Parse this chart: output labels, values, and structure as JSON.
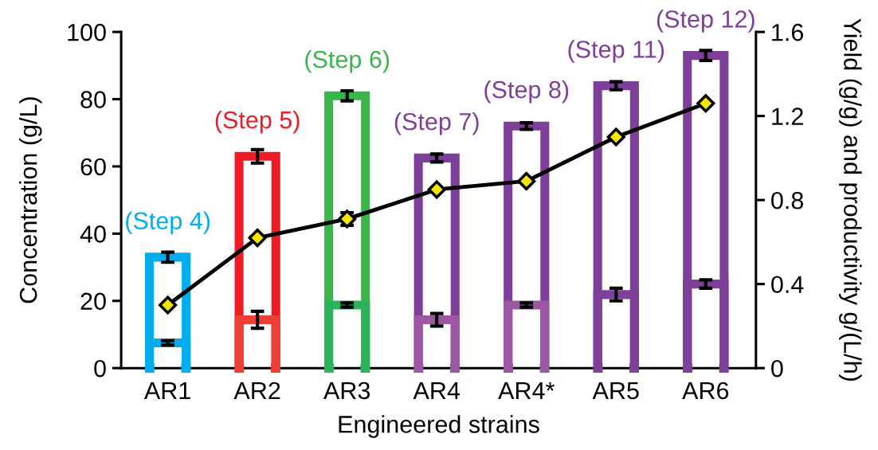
{
  "chart_data": {
    "type": "bar",
    "xlabel": "Engineered strains",
    "ylabel": "Concentration (g/L)",
    "y2label": "Yield (g/g) and productivity g/(L/h)",
    "categories": [
      "AR1",
      "AR2",
      "AR3",
      "AR4",
      "AR4*",
      "AR5",
      "AR6"
    ],
    "ylim": [
      0,
      100
    ],
    "yticks": [
      0,
      20,
      40,
      60,
      80,
      100
    ],
    "y2lim": [
      0,
      1.6
    ],
    "y2ticks": [
      0,
      0.4,
      0.8,
      1.2,
      1.6
    ],
    "series": [
      {
        "colors": [
          "#00aeef",
          "#ed1c24",
          "#39b54a",
          "#7d3f98",
          "#7d3f98",
          "#7d3f98",
          "#7d3f98"
        ],
        "values": [
          33,
          63,
          81,
          62.5,
          72,
          84,
          93
        ],
        "errors": [
          1.5,
          2,
          1.5,
          1.2,
          1,
          1.2,
          1.5
        ]
      },
      {
        "axis": "y2",
        "colors": [
          "#00aeef",
          "#ef3e36",
          "#2bb35b",
          "#9c57a3",
          "#9c57a3",
          "#7d3f98",
          "#7d3f98"
        ],
        "values": [
          0.12,
          0.23,
          0.3,
          0.23,
          0.3,
          0.35,
          0.4
        ],
        "errors": [
          0.01,
          0.04,
          0.01,
          0.03,
          0.01,
          0.03,
          0.02
        ]
      },
      {
        "type": "line",
        "axis": "y2",
        "color": "#000000",
        "marker": "diamond",
        "line_style": "solid",
        "values": [
          0.3,
          0.62,
          0.71,
          0.85,
          0.89,
          1.1,
          1.26
        ],
        "errors": [
          null,
          null,
          0.03,
          null,
          null,
          null,
          null
        ]
      }
    ],
    "annotations": [
      {
        "text": "(Step 4)",
        "x": "AR1",
        "y": 33
      },
      {
        "text": "(Step 5)",
        "x": "AR2",
        "y": 63
      },
      {
        "text": "(Step 6)",
        "x": "AR3",
        "y": 81
      },
      {
        "text": "(Step 7)",
        "x": "AR4",
        "y": 62.5
      },
      {
        "text": "(Step 8)",
        "x": "AR4*",
        "y": 72
      },
      {
        "text": "(Step 11)",
        "x": "AR5",
        "y": 84
      },
      {
        "text": "(Step 12)",
        "x": "AR6",
        "y": 93
      }
    ]
  }
}
